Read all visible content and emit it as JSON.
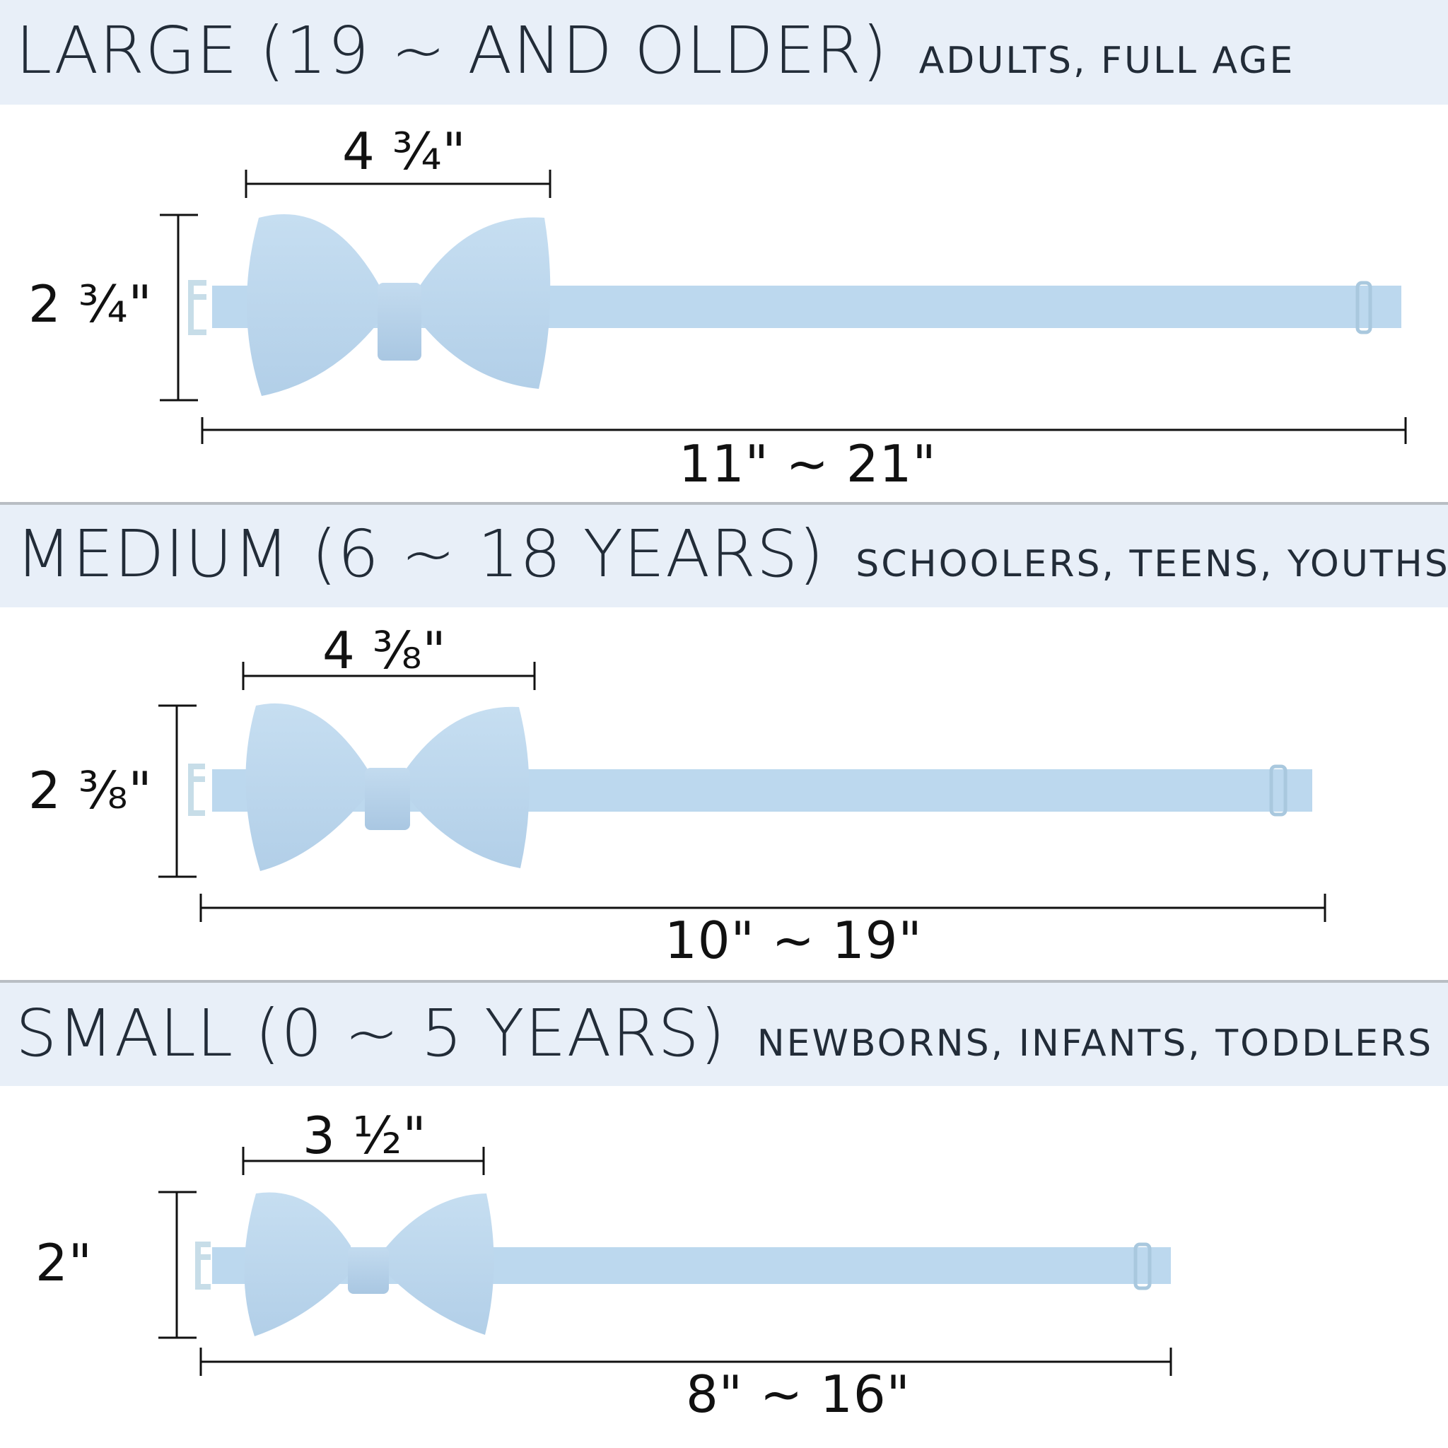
{
  "colors": {
    "band": "#e8eff8",
    "divider": "#b9bec4",
    "bow_fabric": "#bcd8ee",
    "bow_shade": "#a5c5e0",
    "clip": "#c7dde8",
    "dimension_line": "#111111"
  },
  "sizes": [
    {
      "title": "LARGE (19 ~ AND OLDER)",
      "subtitle": "ADULTS, FULL AGE",
      "bow_width": "4 ¾\"",
      "bow_height": "2 ¾\"",
      "strap_length": "11\" ~ 21\""
    },
    {
      "title": "MEDIUM (6 ~ 18 YEARS)",
      "subtitle": "SCHOOLERS, TEENS, YOUTHS",
      "bow_width": "4 ⅜\"",
      "bow_height": "2 ⅜\"",
      "strap_length": "10\" ~ 19\""
    },
    {
      "title": "SMALL (0 ~ 5 YEARS)",
      "subtitle": "NEWBORNS, INFANTS, TODDLERS",
      "bow_width": "3 ½\"",
      "bow_height": "2\"",
      "strap_length": "8\" ~ 16\""
    }
  ]
}
